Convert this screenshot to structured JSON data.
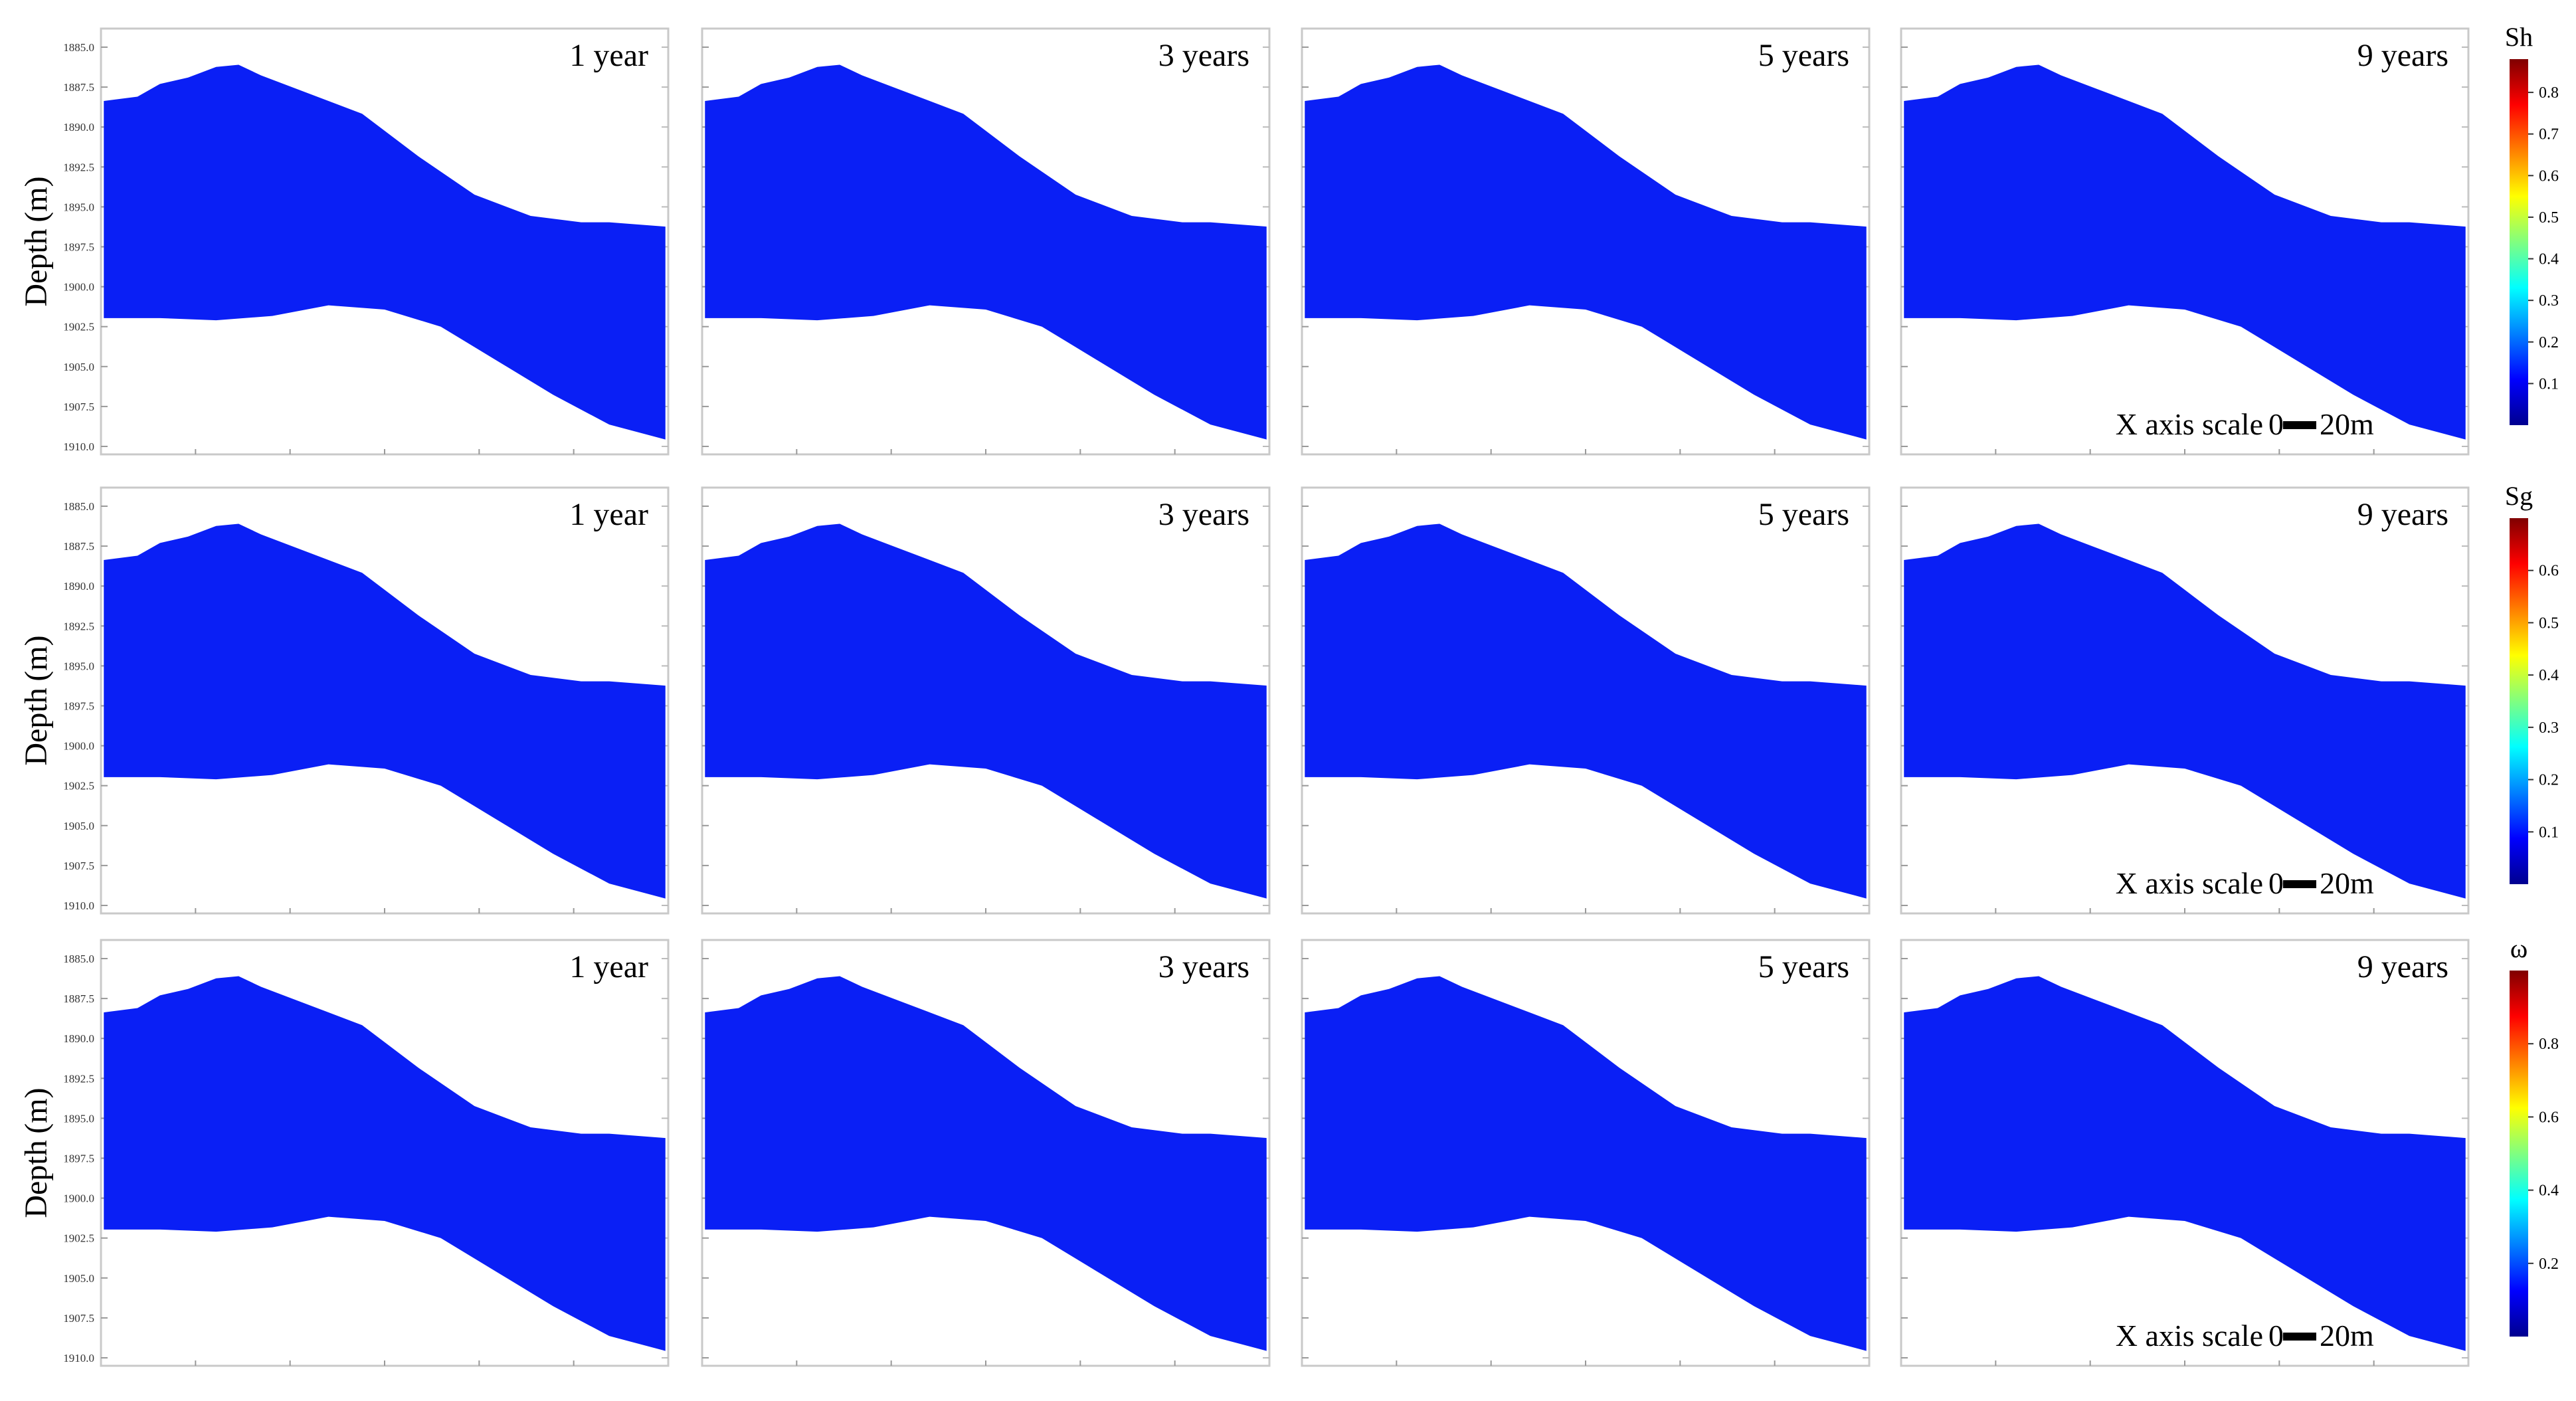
{
  "figure": {
    "row_ylabel": "Depth (m)",
    "depth_ticks": [
      "1885.0",
      "1887.5",
      "1890.0",
      "1892.5",
      "1895.0",
      "1897.5",
      "1900.0",
      "1902.5",
      "1905.0",
      "1907.5",
      "1910.0"
    ],
    "scale_bar": {
      "label": "X axis scale",
      "start": "0",
      "end": "20m"
    },
    "colors": {
      "model_blue": "#0a1ff5",
      "jet": [
        "#00008f",
        "#0000ff",
        "#0080ff",
        "#00ffff",
        "#80ff80",
        "#ffff00",
        "#ff8000",
        "#ff0000",
        "#800000"
      ],
      "omega": [
        "#1a1aff",
        "#5f6ff2",
        "#a9b4e0",
        "#d5c8b8",
        "#f28f6d",
        "#ff4d33"
      ]
    }
  },
  "chart_data": [
    {
      "type": "heatmap",
      "variable": "Sh",
      "colorbar": {
        "title": "Sh",
        "ticks": [
          "0.8",
          "0.7",
          "0.6",
          "0.5",
          "0.4",
          "0.3",
          "0.2",
          "0.1"
        ],
        "range": [
          0,
          0.88
        ]
      },
      "ylabel": "Depth (m)",
      "panels": [
        {
          "title": "1 year",
          "pattern": "sh",
          "stage": 0
        },
        {
          "title": "3 years",
          "pattern": "sh",
          "stage": 1
        },
        {
          "title": "5 years",
          "pattern": "sh",
          "stage": 2
        },
        {
          "title": "9 years",
          "pattern": "sh",
          "stage": 3
        }
      ]
    },
    {
      "type": "heatmap",
      "variable": "Sg",
      "colorbar": {
        "title": "Sg",
        "ticks": [
          "0.6",
          "0.5",
          "0.4",
          "0.3",
          "0.2",
          "0.1"
        ],
        "range": [
          0,
          0.7
        ]
      },
      "ylabel": "Depth (m)",
      "panels": [
        {
          "title": "1 year",
          "pattern": "sg",
          "stage": 0
        },
        {
          "title": "3 years",
          "pattern": "sg",
          "stage": 1
        },
        {
          "title": "5 years",
          "pattern": "sg",
          "stage": 2
        },
        {
          "title": "9 years",
          "pattern": "sg",
          "stage": 3
        }
      ]
    },
    {
      "type": "heatmap",
      "variable": "ω",
      "colorbar": {
        "title": "ω",
        "ticks": [
          "0.8",
          "0.6",
          "0.4",
          "0.2"
        ],
        "range": [
          0,
          1
        ]
      },
      "ylabel": "Depth (m)",
      "panels": [
        {
          "title": "1 year",
          "pattern": "omega",
          "stage": 0
        },
        {
          "title": "3 years",
          "pattern": "omega",
          "stage": 1
        },
        {
          "title": "5 years",
          "pattern": "omega",
          "stage": 2
        },
        {
          "title": "9 years",
          "pattern": "omega",
          "stage": 3
        }
      ]
    }
  ]
}
